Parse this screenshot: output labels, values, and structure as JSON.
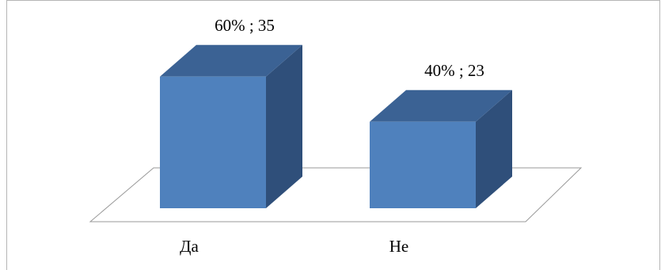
{
  "chart_data": {
    "type": "bar",
    "three_d": true,
    "categories": [
      "Да",
      "Не"
    ],
    "values": [
      35,
      23
    ],
    "percentages": [
      60,
      40
    ],
    "data_labels": [
      "60% ; 35",
      "40% ; 23"
    ],
    "title": "",
    "xlabel": "",
    "ylabel": "",
    "grid": false,
    "legend": "none",
    "colors": {
      "front": "#4f81bd",
      "side": "#2f4f7a",
      "top": "#3b6294",
      "floor_line": "#999999",
      "frame": "#b5b5b5"
    }
  }
}
